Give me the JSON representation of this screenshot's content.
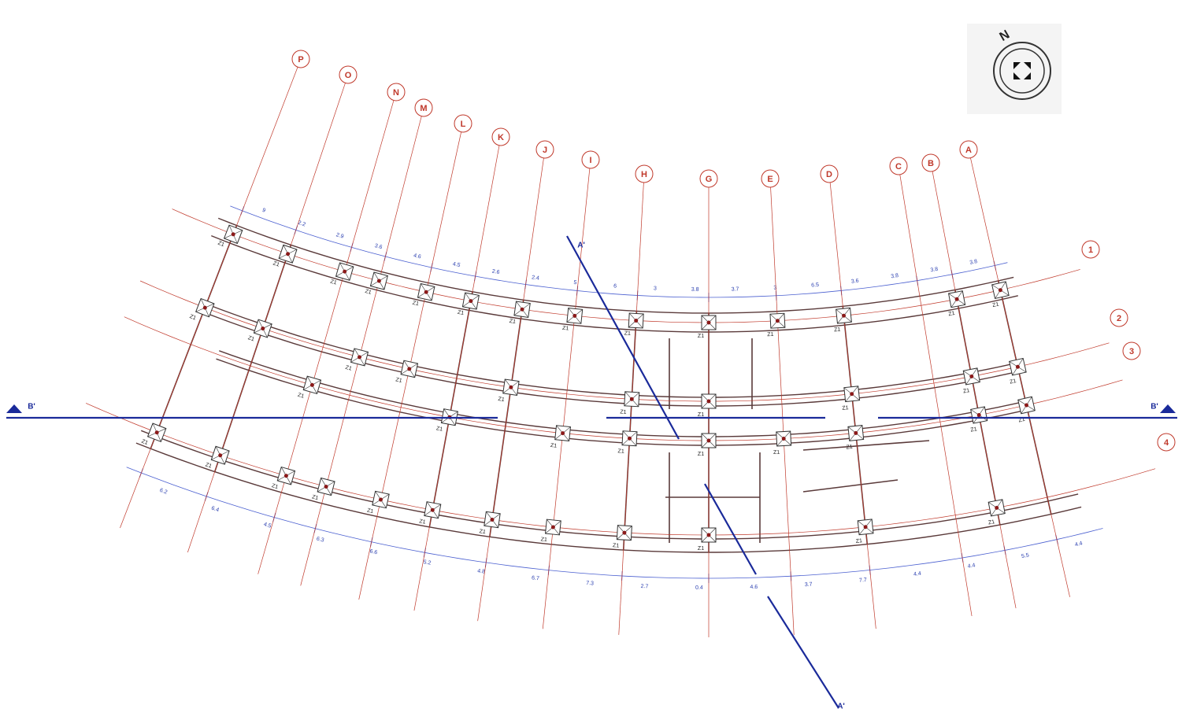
{
  "compass": {
    "north": "N"
  },
  "axes": {
    "columns": [
      "P",
      "O",
      "N",
      "M",
      "L",
      "K",
      "J",
      "I",
      "H",
      "G",
      "E",
      "D",
      "C",
      "B",
      "A"
    ],
    "rows": [
      "1",
      "2",
      "3",
      "4"
    ]
  },
  "sections": [
    "B'",
    "B'",
    "A'",
    "A'"
  ],
  "columns": [
    "Z1",
    "Z1",
    "Z1",
    "Z1",
    "Z1",
    "Z1",
    "Z1",
    "Z1",
    "Z1",
    "Z1",
    "Z1",
    "Z1",
    "Z1",
    "Z1",
    "Z1",
    "Z1",
    "Z1",
    "Z1",
    "Z1",
    "Z1",
    "Z1",
    "Z1",
    "Z1",
    "Z1",
    "Z1",
    "Z1",
    "Z1",
    "Z1",
    "Z1",
    "Z1",
    "Z1",
    "Z1",
    "Z1",
    "Z1",
    "Z1",
    "Z1",
    "Z1",
    "Z1",
    "Z1",
    "Z1",
    "Z1",
    "Z1",
    "Z1",
    "Z1",
    "Z1"
  ],
  "dimensions": {
    "outer": [
      "9",
      "2.2",
      "2.9",
      "3.6",
      "4.6",
      "4.5",
      "2.6",
      "2.4",
      "5",
      "6",
      "3",
      "3.8",
      "3.7",
      "3",
      "6.5",
      "3.6",
      "3.8",
      "3.8",
      "3.8"
    ],
    "inner": [
      "6.2",
      "6.4",
      "4.5",
      "6.3",
      "6.6",
      "5.2",
      "4.8",
      "6.7",
      "7.3",
      "2.7",
      "0.4",
      "4.6",
      "3.7",
      "7.7",
      "4.4",
      "4.4",
      "5.5",
      "4.4"
    ]
  }
}
